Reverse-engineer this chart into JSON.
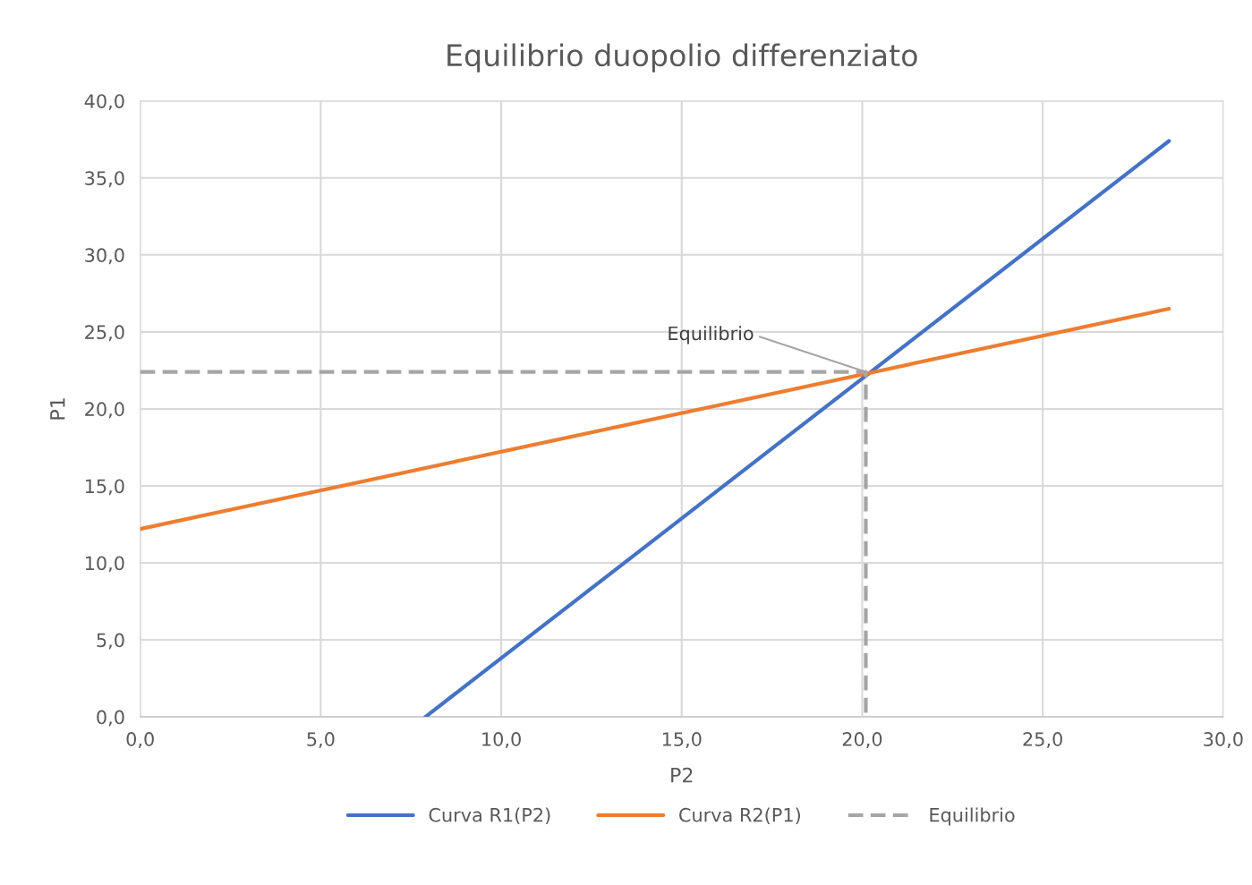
{
  "chart_data": {
    "type": "line",
    "title": "Equilibrio duopolio differenziato",
    "xlabel": "P2",
    "ylabel": "P1",
    "series": [
      {
        "name": "Curva R1(P2)",
        "color": "#4472c4",
        "x": [
          7.9,
          28.5
        ],
        "values": [
          0,
          37.4
        ]
      },
      {
        "name": "Curva R2(P1)",
        "color": "#ed7d31",
        "x": [
          0,
          28.5
        ],
        "values": [
          12.2,
          26.5
        ]
      },
      {
        "name": "Equilibrio",
        "color": "#a5a5a5",
        "line_style": "dashed",
        "x": [
          0,
          20.1,
          20.1
        ],
        "values": [
          22.4,
          22.4,
          0
        ]
      }
    ],
    "annotations": [
      {
        "text": "Equilibrio",
        "x": 20.1,
        "y": 22.4
      }
    ],
    "xlim": [
      0,
      30
    ],
    "ylim": [
      0,
      40
    ],
    "xticks": [
      {
        "value": 0,
        "label": "0,0"
      },
      {
        "value": 5,
        "label": "5,0"
      },
      {
        "value": 10,
        "label": "10,0"
      },
      {
        "value": 15,
        "label": "15,0"
      },
      {
        "value": 20,
        "label": "20,0"
      },
      {
        "value": 25,
        "label": "25,0"
      },
      {
        "value": 30,
        "label": "30,0"
      }
    ],
    "yticks": [
      {
        "value": 0,
        "label": "0,0"
      },
      {
        "value": 5,
        "label": "5,0"
      },
      {
        "value": 10,
        "label": "10,0"
      },
      {
        "value": 15,
        "label": "15,0"
      },
      {
        "value": 20,
        "label": "20,0"
      },
      {
        "value": 25,
        "label": "25,0"
      },
      {
        "value": 30,
        "label": "30,0"
      },
      {
        "value": 35,
        "label": "35,0"
      },
      {
        "value": 40,
        "label": "40,0"
      }
    ],
    "grid": true,
    "legend": "bottom"
  }
}
